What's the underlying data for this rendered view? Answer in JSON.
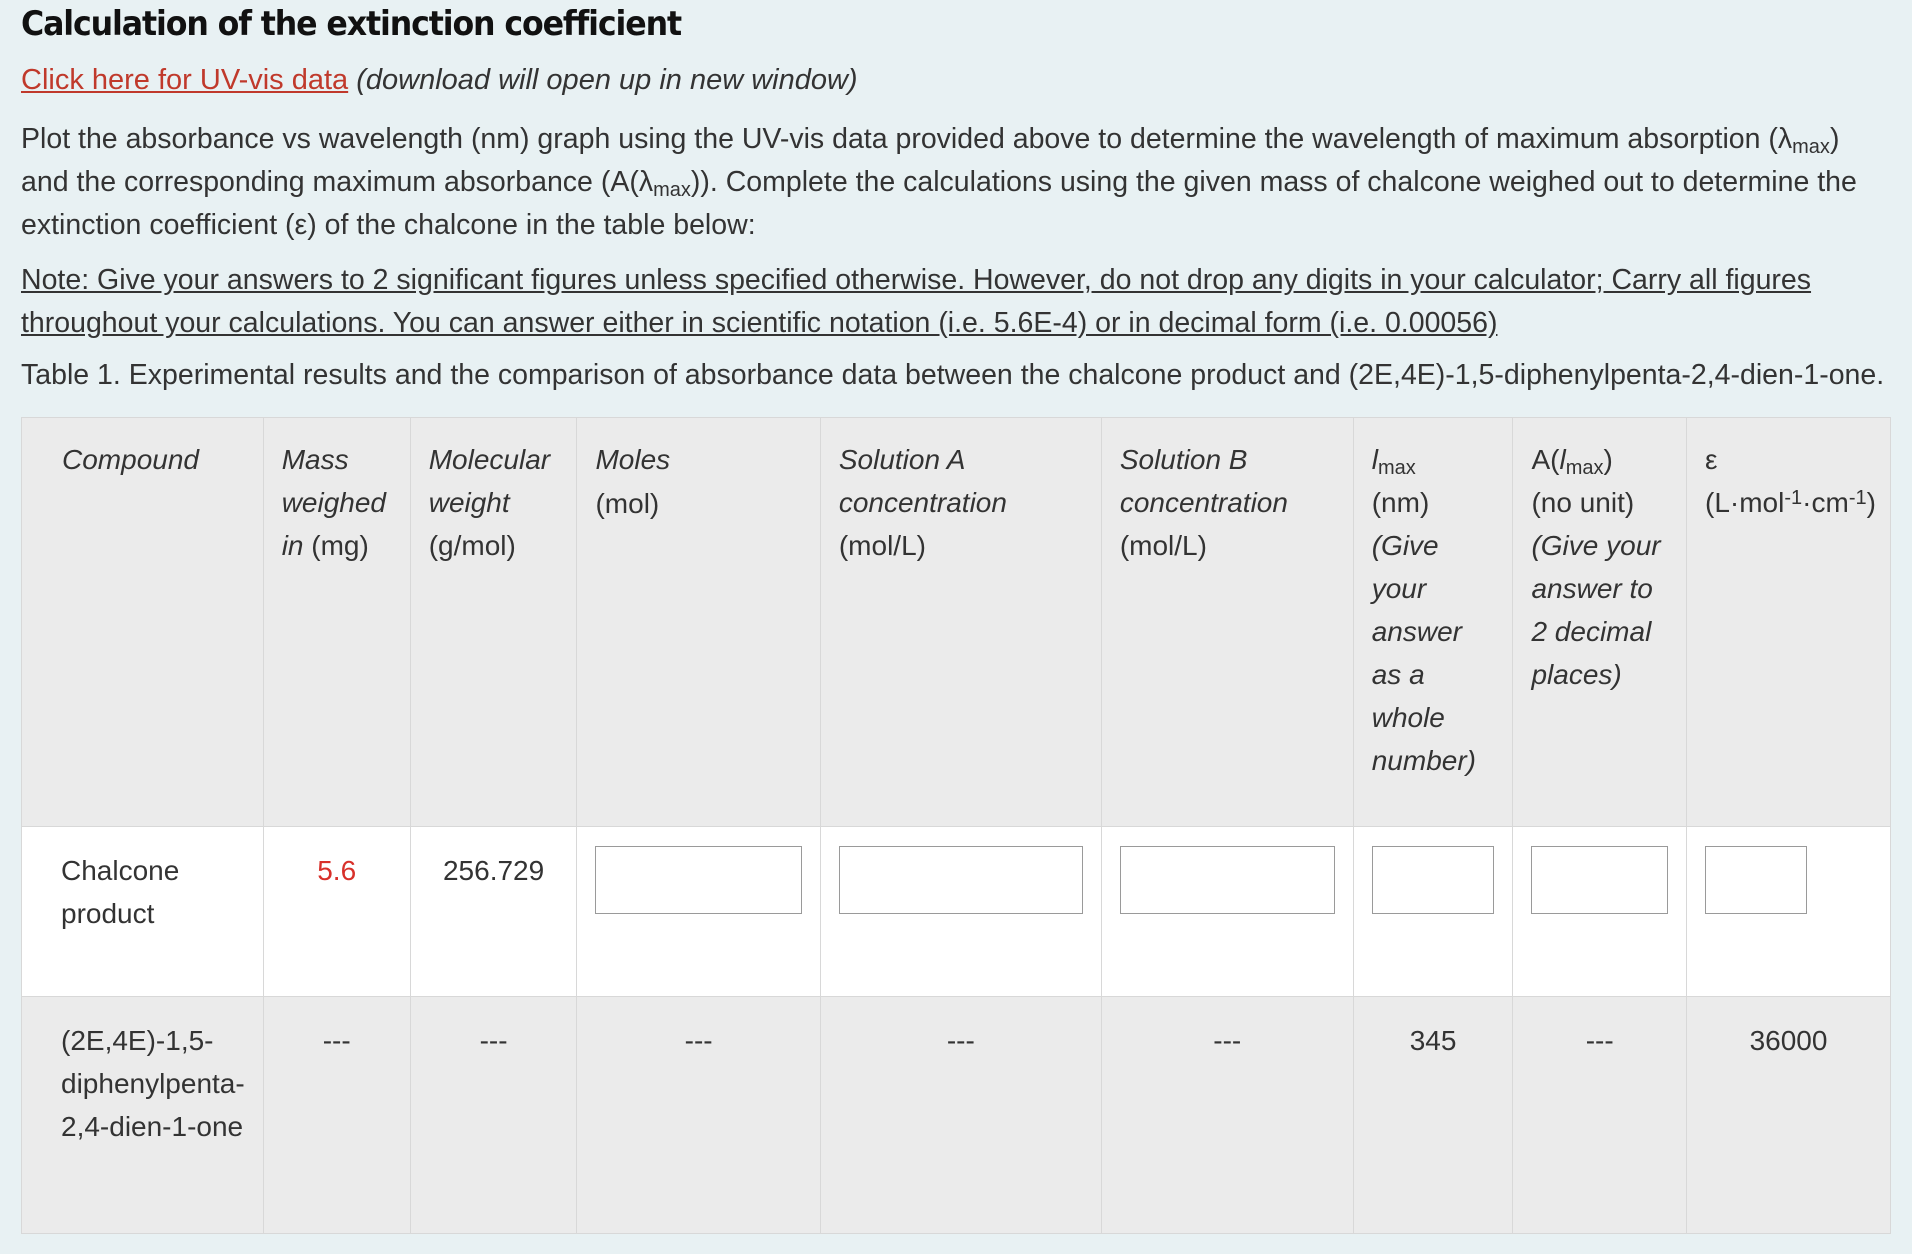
{
  "heading": "Calculation of the extinction coefficient",
  "link": {
    "text": "Click here for UV-vis data",
    "note": "(download will open up in new window)"
  },
  "intro": {
    "p1": "Plot the absorbance vs wavelength (nm) graph using the UV-vis data provided above to determine the wavelength of maximum absorption (λ",
    "sub1": "max",
    "p2": ") and the corresponding maximum absorbance (A(λ",
    "sub2": "max",
    "p3": ")). Complete the calculations using the given mass of chalcone weighed out to determine the extinction coefficient (ε) of the chalcone in the table below:"
  },
  "note": "Note: Give your answers to 2 significant figures unless specified otherwise. However, do not drop any digits in your calculator; Carry all figures throughout your calculations. You can answer either in scientific notation (i.e. 5.6E-4) or in decimal form (i.e. 0.00056)",
  "caption": {
    "label": "Table 1.",
    "text": " Experimental results and the comparison of absorbance data between the chalcone product and (2E,4E)-1,5-diphenylpenta-2,4-dien-1-one."
  },
  "table": {
    "headers": {
      "compound": "Compound",
      "mass": {
        "a": "Mass weighed in",
        "b": " (mg)"
      },
      "mw": {
        "a": "Molecular weight",
        "b": "(g/mol)"
      },
      "moles": {
        "a": "Moles",
        "b": "(mol)"
      },
      "solA": {
        "a": "Solution A concentration",
        "b": "(mol/L)"
      },
      "solB": {
        "a": "Solution B concentration",
        "b": "(mol/L)"
      },
      "lmax": {
        "sym": "l",
        "sub": "max",
        "unit": "(nm)",
        "hint": "(Give your answer as a whole number)"
      },
      "amax": {
        "a": "A(",
        "sym": "l",
        "sub": "max",
        "c": ")",
        "unit": "(no unit)",
        "hint": "(Give your answer to 2 decimal places)"
      },
      "eps": {
        "sym": "ε",
        "u1": "(L·mol",
        "s1": "-1",
        "u2": "·cm",
        "s2": "-1",
        "u3": ")"
      }
    },
    "rows": [
      {
        "compound": "Chalcone product",
        "mass": "5.6",
        "mw": "256.729"
      },
      {
        "compound": "(2E,4E)-1,5-diphenylpenta-2,4-dien-1-one",
        "mass": "---",
        "mw": "---",
        "moles": "---",
        "solA": "---",
        "solB": "---",
        "lmax": "345",
        "amax": "---",
        "eps": "36000"
      }
    ]
  },
  "colors": {
    "accent_link": "#c0392b",
    "given_value": "#d8302a",
    "page_bg": "#e8f1f3",
    "header_bg": "#ebebeb"
  }
}
